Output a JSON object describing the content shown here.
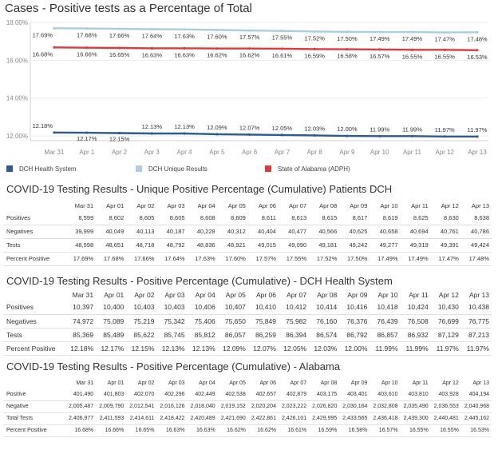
{
  "dates": [
    "Mar 31",
    "Apr 01",
    "Apr 02",
    "Apr 03",
    "Apr 04",
    "Apr 05",
    "Apr 06",
    "Apr 07",
    "Apr 08",
    "Apr 09",
    "Apr 10",
    "Apr 11",
    "Apr 12",
    "Apr 13"
  ],
  "chart_data": {
    "type": "line",
    "title": "Cases - Positive tests as a Percentage of Total",
    "x": [
      "Mar 31",
      "Apr 1",
      "Apr 2",
      "Apr 3",
      "Apr 4",
      "Apr 5",
      "Apr 6",
      "Apr 7",
      "Apr 8",
      "Apr 9",
      "Apr 10",
      "Apr 11",
      "Apr 12",
      "Apr 13"
    ],
    "ylim": [
      11.75,
      18.0
    ],
    "yticks": [
      "18.00%",
      "16.00%",
      "14.00%",
      "12.00%"
    ],
    "grid": true,
    "legend_position": "bottom",
    "series": [
      {
        "name": "DCH Health System",
        "color": "#2f5a8b",
        "values": [
          12.18,
          12.17,
          12.15,
          12.13,
          12.13,
          12.09,
          12.07,
          12.05,
          12.03,
          12.0,
          11.99,
          11.99,
          11.97,
          11.97
        ],
        "labels": [
          "12.18%",
          "12.17%",
          "12.15%",
          "12.13%",
          "12.13%",
          "12.09%",
          "12.07%",
          "12.05%",
          "12.03%",
          "12.00%",
          "11.99%",
          "11.99%",
          "11.97%",
          "11.97%"
        ]
      },
      {
        "name": "DCH Unique Results",
        "color": "#a8cde4",
        "values": [
          17.69,
          17.68,
          17.66,
          17.64,
          17.63,
          17.6,
          17.57,
          17.55,
          17.52,
          17.5,
          17.49,
          17.49,
          17.47,
          17.48
        ],
        "labels": [
          "17.69%",
          "17.68%",
          "17.66%",
          "17.64%",
          "17.63%",
          "17.60%",
          "17.57%",
          "17.55%",
          "17.52%",
          "17.50%",
          "17.49%",
          "17.49%",
          "17.47%",
          "17.48%"
        ]
      },
      {
        "name": "State of Alabama (ADPH)",
        "color": "#e0383f",
        "values": [
          16.68,
          16.66,
          16.65,
          16.63,
          16.63,
          16.62,
          16.62,
          16.61,
          16.59,
          16.58,
          16.57,
          16.55,
          16.55,
          16.53
        ],
        "labels": [
          "16.68%",
          "16.66%",
          "16.65%",
          "16.63%",
          "16.63%",
          "16.62%",
          "16.62%",
          "16.61%",
          "16.59%",
          "16.58%",
          "16.57%",
          "16.55%",
          "16.55%",
          "16.53%"
        ]
      }
    ]
  },
  "tables": [
    {
      "title": "COVID-19 Testing Results - Unique Positive Percentage (Cumulative) Patients DCH",
      "rows": [
        {
          "label": "Positives",
          "values": [
            "8,599",
            "8,602",
            "8,605",
            "8,605",
            "8,608",
            "8,609",
            "8,611",
            "8,613",
            "8,615",
            "8,617",
            "8,619",
            "8,625",
            "8,630",
            "8,638"
          ]
        },
        {
          "label": "Negatives",
          "values": [
            "39,999",
            "40,049",
            "40,113",
            "40,187",
            "40,228",
            "40,312",
            "40,404",
            "40,477",
            "40,566",
            "40,625",
            "40,658",
            "40,694",
            "40,761",
            "40,786"
          ]
        },
        {
          "label": "Tests",
          "values": [
            "48,598",
            "48,651",
            "48,718",
            "48,792",
            "48,836",
            "48,921",
            "49,015",
            "49,090",
            "49,181",
            "49,242",
            "49,277",
            "49,319",
            "49,391",
            "49,424"
          ]
        },
        {
          "label": "Percent Positive",
          "values": [
            "17.69%",
            "17.68%",
            "17.66%",
            "17.64%",
            "17.63%",
            "17.60%",
            "17.57%",
            "17.55%",
            "17.52%",
            "17.50%",
            "17.49%",
            "17.49%",
            "17.47%",
            "17.48%"
          ]
        }
      ]
    },
    {
      "title": "COVID-19 Testing Results - Positive Percentage (Cumulative) - DCH Health System",
      "rows": [
        {
          "label": "Positives",
          "values": [
            "10,397",
            "10,400",
            "10,403",
            "10,403",
            "10,406",
            "10,407",
            "10,410",
            "10,412",
            "10,414",
            "10,416",
            "10,418",
            "10,424",
            "10,430",
            "10,438"
          ]
        },
        {
          "label": "Negatives",
          "values": [
            "74,972",
            "75,089",
            "75,219",
            "75,342",
            "75,406",
            "75,650",
            "75,849",
            "75,982",
            "76,160",
            "76,376",
            "76,439",
            "76,508",
            "76,699",
            "76,775"
          ]
        },
        {
          "label": "Tests",
          "values": [
            "85,369",
            "85,489",
            "85,622",
            "85,745",
            "85,812",
            "86,057",
            "86,259",
            "86,394",
            "86,574",
            "86,792",
            "86,857",
            "86,932",
            "87,129",
            "87,213"
          ]
        },
        {
          "label": "Percent Positive",
          "values": [
            "12.18%",
            "12.17%",
            "12.15%",
            "12.13%",
            "12.13%",
            "12.09%",
            "12.07%",
            "12.05%",
            "12.03%",
            "12.00%",
            "11.99%",
            "11.99%",
            "11.97%",
            "11.97%"
          ]
        }
      ]
    },
    {
      "title": "COVID-19 Testing Results - Positive Percentage (Cumulative) - Alabama",
      "rows": [
        {
          "label": "Positive",
          "values": [
            "401,490",
            "401,803",
            "402,070",
            "402,296",
            "402,449",
            "402,538",
            "402,657",
            "402,879",
            "403,175",
            "403,401",
            "403,610",
            "403,810",
            "403,928",
            "404,194"
          ]
        },
        {
          "label": "Negative",
          "values": [
            "2,005,487",
            "2,009,790",
            "2,012,541",
            "2,016,126",
            "2,018,040",
            "2,019,152",
            "2,020,204",
            "2,023,222",
            "2,026,820",
            "2,030,164",
            "2,032,808",
            "2,035,490",
            "2,036,553",
            "2,040,968"
          ]
        },
        {
          "label": "Total Tests",
          "values": [
            "2,406,977",
            "2,411,593",
            "2,414,611",
            "2,418,422",
            "2,420,489",
            "2,421,690",
            "2,422,861",
            "2,426,101",
            "2,429,995",
            "2,433,565",
            "2,436,418",
            "2,439,300",
            "2,440,481",
            "2,445,162"
          ]
        },
        {
          "label": "Percent Positive",
          "values": [
            "16.68%",
            "16.66%",
            "16.65%",
            "16.63%",
            "16.63%",
            "16.62%",
            "16.62%",
            "16.61%",
            "16.59%",
            "16.58%",
            "16.57%",
            "16.55%",
            "16.55%",
            "16.53%"
          ]
        }
      ]
    }
  ]
}
